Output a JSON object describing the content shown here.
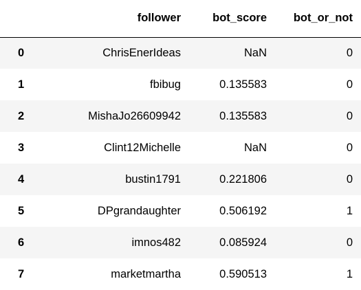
{
  "table": {
    "columns": [
      "follower",
      "bot_score",
      "bot_or_not"
    ],
    "rows": [
      {
        "index": "0",
        "follower": "ChrisEnerIdeas",
        "bot_score": "NaN",
        "bot_or_not": "0"
      },
      {
        "index": "1",
        "follower": "fbibug",
        "bot_score": "0.135583",
        "bot_or_not": "0"
      },
      {
        "index": "2",
        "follower": "MishaJo26609942",
        "bot_score": "0.135583",
        "bot_or_not": "0"
      },
      {
        "index": "3",
        "follower": "Clint12Michelle",
        "bot_score": "NaN",
        "bot_or_not": "0"
      },
      {
        "index": "4",
        "follower": "bustin1791",
        "bot_score": "0.221806",
        "bot_or_not": "0"
      },
      {
        "index": "5",
        "follower": "DPgrandaughter",
        "bot_score": "0.506192",
        "bot_or_not": "1"
      },
      {
        "index": "6",
        "follower": "imnos482",
        "bot_score": "0.085924",
        "bot_or_not": "0"
      },
      {
        "index": "7",
        "follower": "marketmartha",
        "bot_score": "0.590513",
        "bot_or_not": "1"
      }
    ]
  }
}
